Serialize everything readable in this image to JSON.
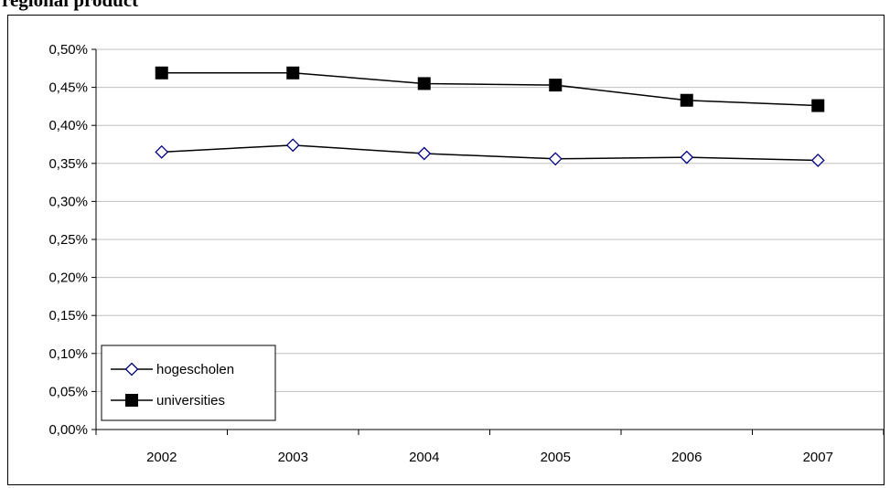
{
  "chart_data": {
    "type": "line",
    "title": "regional product",
    "categories": [
      "2002",
      "2003",
      "2004",
      "2005",
      "2006",
      "2007"
    ],
    "y_ticks": [
      "0,00%",
      "0,05%",
      "0,10%",
      "0,15%",
      "0,20%",
      "0,25%",
      "0,30%",
      "0,35%",
      "0,40%",
      "0,45%",
      "0,50%"
    ],
    "ylim": [
      0,
      0.5
    ],
    "y_unit": "%",
    "grid": true,
    "legend_position": "bottom-left",
    "series": [
      {
        "name": "hogescholen",
        "marker": "open-diamond",
        "color": "#000080",
        "values": [
          0.365,
          0.374,
          0.363,
          0.356,
          0.358,
          0.354
        ]
      },
      {
        "name": "universities",
        "marker": "filled-square",
        "color": "#000000",
        "values": [
          0.469,
          0.469,
          0.455,
          0.453,
          0.433,
          0.426
        ]
      }
    ]
  }
}
